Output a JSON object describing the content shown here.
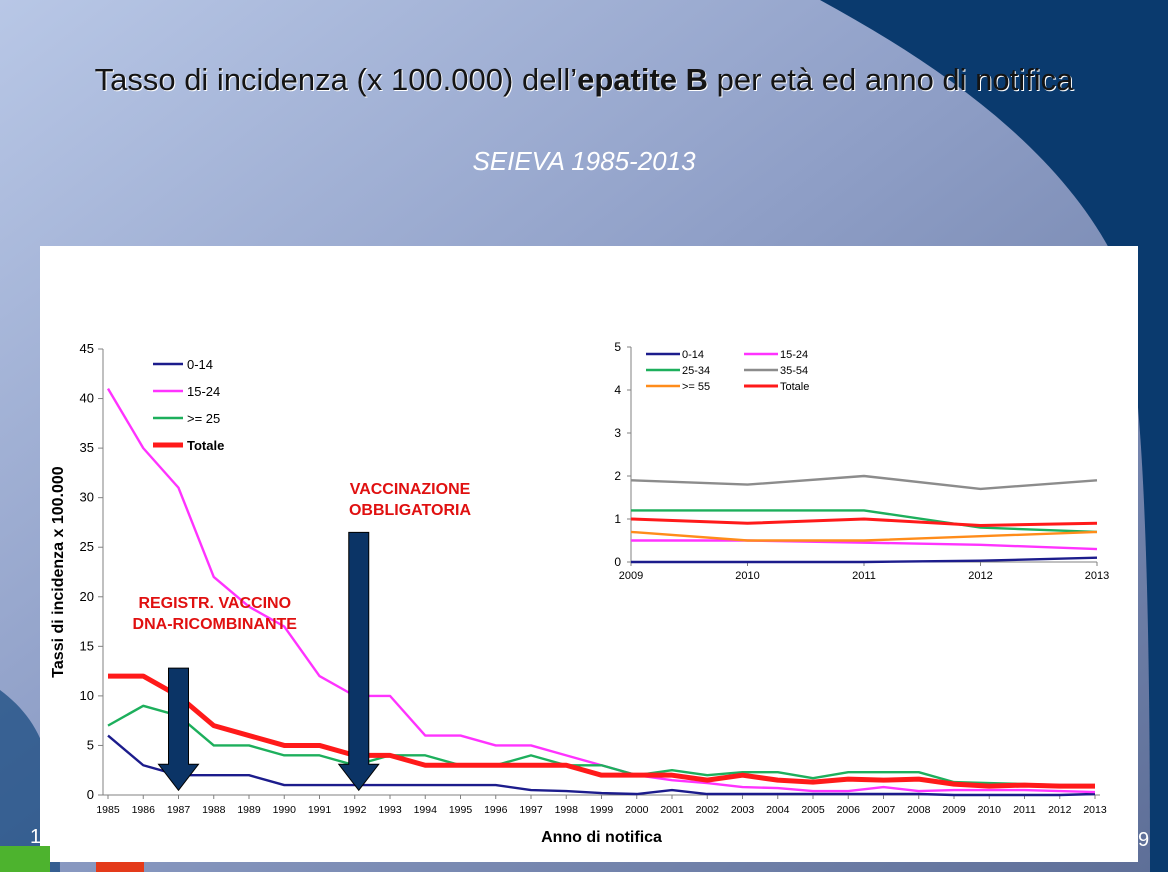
{
  "slide": {
    "title_prefix": "Tasso di incidenza (x 100.000) dell’",
    "title_bold": "epatite B",
    "title_suffix": "  per età ed anno di notifica",
    "subtitle": "SEIEVA 1985-2013",
    "page_left": "1",
    "page_right": "9"
  },
  "colors": {
    "panel": "#ffffff",
    "navy": "#0b3466"
  },
  "chart_data": [
    {
      "type": "line",
      "xlabel": "Anno di notifica",
      "ylabel": "Tassi di incidenza x 100.000",
      "ylim": [
        0,
        45
      ],
      "yticks": [
        0,
        5,
        10,
        15,
        20,
        25,
        30,
        35,
        40,
        45
      ],
      "x": [
        1985,
        1986,
        1987,
        1988,
        1989,
        1990,
        1991,
        1992,
        1993,
        1994,
        1995,
        1996,
        1997,
        1998,
        1999,
        2000,
        2001,
        2002,
        2003,
        2004,
        2005,
        2006,
        2007,
        2008,
        2009,
        2010,
        2011,
        2012,
        2013
      ],
      "legend_position": "top-left",
      "series": [
        {
          "name": "0-14",
          "color": "#1c1c8c",
          "values": [
            6,
            3,
            2,
            2,
            2,
            1,
            1,
            1,
            1,
            1,
            1,
            1,
            0.5,
            0.4,
            0.2,
            0.1,
            0.5,
            0.1,
            0.1,
            0.1,
            0.1,
            0.1,
            0.1,
            0.1,
            0,
            0,
            0,
            0,
            0.1
          ]
        },
        {
          "name": "15-24",
          "color": "#ff33ff",
          "values": [
            41,
            35,
            31,
            22,
            19,
            17,
            12,
            10,
            10,
            6,
            6,
            5,
            5,
            4,
            3,
            2,
            1.5,
            1.2,
            0.8,
            0.7,
            0.4,
            0.4,
            0.8,
            0.4,
            0.5,
            0.5,
            0.5,
            0.4,
            0.3
          ]
        },
        {
          "name": ">= 25",
          "color": "#1daf5c",
          "values": [
            7,
            9,
            8,
            5,
            5,
            4,
            4,
            3,
            4,
            4,
            3,
            3,
            4,
            3,
            3,
            2,
            2.5,
            2,
            2.3,
            2.3,
            1.7,
            2.3,
            2.3,
            2.3,
            1.3,
            1.2,
            1.1,
            1.0,
            1.0
          ]
        },
        {
          "name": "Totale",
          "color": "#ff1a1a",
          "values": [
            12,
            12,
            10,
            7,
            6,
            5,
            5,
            4,
            4,
            3,
            3,
            3,
            3,
            3,
            2,
            2,
            2,
            1.5,
            2,
            1.5,
            1.3,
            1.6,
            1.5,
            1.6,
            1.1,
            0.9,
            1.0,
            0.9,
            0.9
          ]
        }
      ],
      "annotations": [
        {
          "text": "VACCINAZIONE\nOBBLIGATORIA",
          "x": 1992,
          "arrow_from": 26.5,
          "arrow_to": 3.3
        },
        {
          "text": "REGISTR. VACCINO\nDNA-RICOMBINANTE",
          "x": 1987,
          "arrow_from": 12.8,
          "arrow_to": 3.3
        }
      ]
    },
    {
      "type": "line",
      "ylim": [
        0,
        5
      ],
      "yticks": [
        0,
        1,
        2,
        3,
        4,
        5
      ],
      "x": [
        2009,
        2010,
        2011,
        2012,
        2013
      ],
      "legend_position": "top-left",
      "series": [
        {
          "name": "0-14",
          "color": "#1c1c8c",
          "values": [
            0,
            0,
            0,
            0.03,
            0.1
          ]
        },
        {
          "name": "15-24",
          "color": "#ff33ff",
          "values": [
            0.5,
            0.5,
            0.45,
            0.4,
            0.3
          ]
        },
        {
          "name": "25-34",
          "color": "#1daf5c",
          "values": [
            1.2,
            1.2,
            1.2,
            0.8,
            0.7
          ]
        },
        {
          "name": "35-54",
          "color": "#8c8c8c",
          "values": [
            1.9,
            1.8,
            2.0,
            1.7,
            1.9
          ]
        },
        {
          "name": ">= 55",
          "color": "#ff8c1a",
          "values": [
            0.7,
            0.5,
            0.5,
            0.6,
            0.7
          ]
        },
        {
          "name": "Totale",
          "color": "#ff1a1a",
          "values": [
            1.0,
            0.9,
            1.0,
            0.85,
            0.9
          ]
        }
      ]
    }
  ]
}
